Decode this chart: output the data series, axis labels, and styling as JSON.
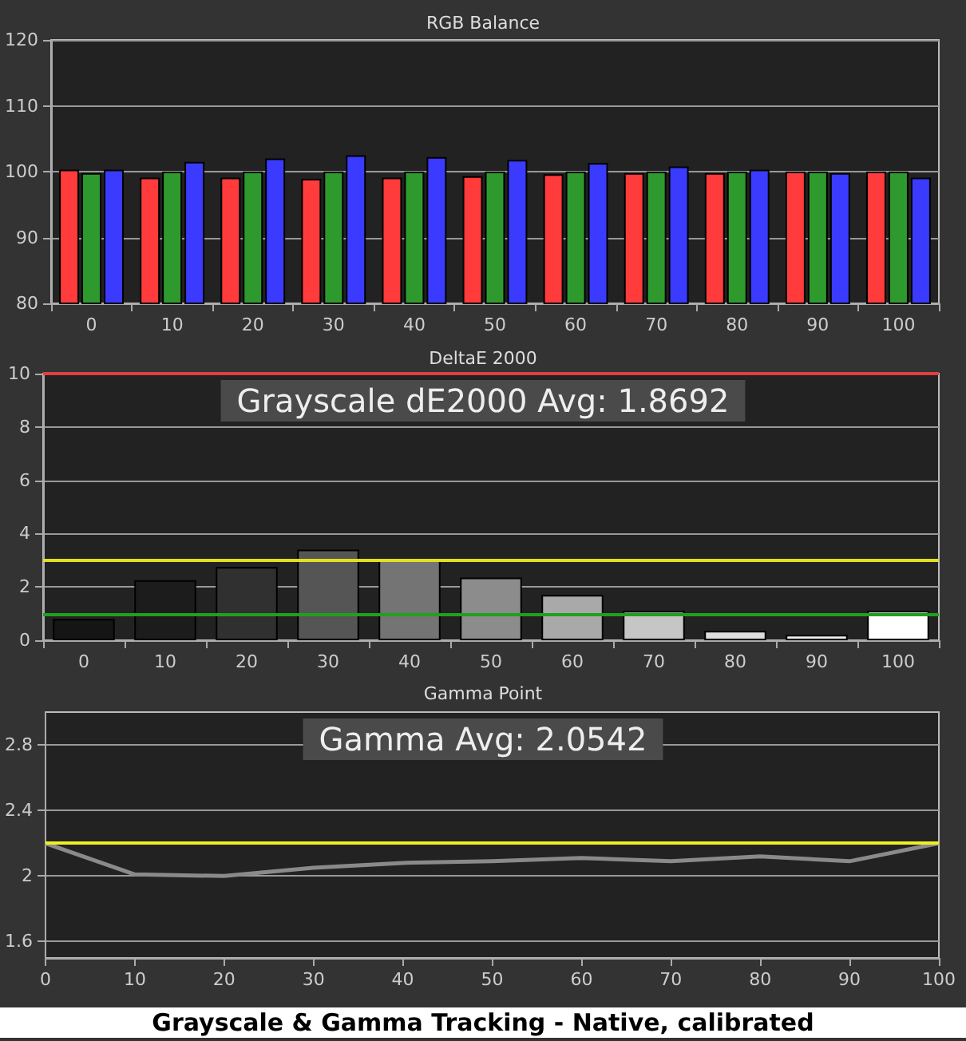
{
  "chart_data": [
    {
      "type": "bar",
      "title": "RGB Balance",
      "categories": [
        "0",
        "10",
        "20",
        "30",
        "40",
        "50",
        "60",
        "70",
        "80",
        "90",
        "100"
      ],
      "series": [
        {
          "color": "#ff3b3b",
          "values": [
            100.3,
            99.1,
            99.1,
            98.9,
            99.1,
            99.3,
            99.6,
            99.8,
            99.8,
            100,
            100
          ]
        },
        {
          "color": "#2e9a2e",
          "values": [
            99.8,
            100,
            100,
            100,
            100,
            100,
            100,
            100,
            100,
            100,
            100
          ]
        },
        {
          "color": "#3b3bff",
          "values": [
            100.3,
            101.5,
            102,
            102.5,
            102.2,
            101.8,
            101.3,
            100.8,
            100.3,
            99.8,
            99.1
          ]
        }
      ],
      "ylim": [
        80,
        120
      ],
      "yticks": [
        80,
        90,
        100,
        110,
        120
      ],
      "grid": "y"
    },
    {
      "type": "bar",
      "title": "DeltaE 2000",
      "categories": [
        "0",
        "10",
        "20",
        "30",
        "40",
        "50",
        "60",
        "70",
        "80",
        "90",
        "100"
      ],
      "values": [
        0.8,
        2.25,
        2.75,
        3.4,
        3.05,
        2.35,
        1.7,
        1.1,
        0.35,
        0.2,
        1.1
      ],
      "colors": [
        "#151515",
        "#1c1c1c",
        "#303030",
        "#555555",
        "#747474",
        "#8c8c8c",
        "#a9a9a9",
        "#c6c6c6",
        "#dddddd",
        "#eeeeee",
        "#ffffff"
      ],
      "ylim": [
        0,
        10
      ],
      "yticks": [
        0,
        2,
        4,
        6,
        8,
        10
      ],
      "grid": "y",
      "ref_lines": [
        {
          "axis": "y",
          "value": 10,
          "color": "#e04040"
        },
        {
          "axis": "y",
          "value": 3,
          "color": "#e0e020"
        },
        {
          "axis": "y",
          "value": 1,
          "color": "#20a020"
        }
      ],
      "annotations": [
        "Grayscale dE2000 Avg: 1.8692"
      ]
    },
    {
      "type": "line",
      "title": "Gamma Point",
      "x": [
        0,
        10,
        20,
        30,
        40,
        50,
        60,
        70,
        80,
        90,
        100
      ],
      "series": [
        {
          "color": "#8a8a8a",
          "values": [
            2.2,
            2.01,
            2.0,
            2.05,
            2.08,
            2.09,
            2.11,
            2.09,
            2.12,
            2.09,
            2.2
          ]
        }
      ],
      "xlim": [
        0,
        100
      ],
      "xticks": [
        0,
        10,
        20,
        30,
        40,
        50,
        60,
        70,
        80,
        90,
        100
      ],
      "ylim": [
        1.5,
        3.0
      ],
      "yticks": [
        1.6,
        2,
        2.4,
        2.8
      ],
      "grid": "y",
      "marker": "none",
      "ref_lines": [
        {
          "axis": "y",
          "value": 2.2,
          "color": "#f0f020"
        }
      ],
      "annotations": [
        "Gamma Avg: 2.0542",
        "Grayscale & Gamma Tracking - Native, calibrated"
      ]
    }
  ]
}
